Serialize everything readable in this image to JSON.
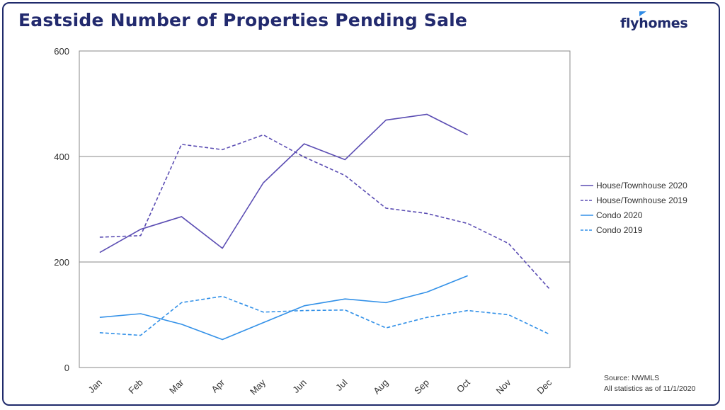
{
  "header": {
    "title": "Eastside Number of Properties Pending Sale",
    "logo_text": "flyhomes"
  },
  "footer": {
    "source_line": "Source: NWMLS",
    "stats_line": "All statistics as of 11/1/2020"
  },
  "colors": {
    "frame": "#1f2a6b",
    "house": "#5b4db3",
    "condo": "#3391e8",
    "grid": "#8a8a8a"
  },
  "chart_data": {
    "type": "line",
    "title": "Eastside Number of Properties Pending Sale",
    "xlabel": "",
    "ylabel": "",
    "categories": [
      "Jan",
      "Feb",
      "Mar",
      "Apr",
      "May",
      "Jun",
      "Jul",
      "Aug",
      "Sep",
      "Oct",
      "Nov",
      "Dec"
    ],
    "ylim": [
      0,
      600
    ],
    "yticks": [
      "0",
      "200",
      "400",
      "600"
    ],
    "grid": "horizontal",
    "legend_position": "right",
    "series": [
      {
        "name": "House/Townhouse 2020",
        "color": "#5b4db3",
        "dash": "solid",
        "values": [
          218,
          262,
          286,
          226,
          350,
          424,
          394,
          469,
          480,
          441,
          null,
          null
        ]
      },
      {
        "name": "House/Townhouse 2019",
        "color": "#5b4db3",
        "dash": "dashed",
        "values": [
          247,
          250,
          423,
          413,
          441,
          399,
          364,
          302,
          292,
          273,
          235,
          149
        ]
      },
      {
        "name": "Condo 2020",
        "color": "#3391e8",
        "dash": "solid",
        "values": [
          95,
          102,
          82,
          53,
          85,
          117,
          130,
          123,
          143,
          174,
          null,
          null
        ]
      },
      {
        "name": "Condo 2019",
        "color": "#3391e8",
        "dash": "dashed",
        "values": [
          66,
          61,
          123,
          135,
          105,
          108,
          109,
          75,
          95,
          108,
          100,
          63
        ]
      }
    ]
  }
}
